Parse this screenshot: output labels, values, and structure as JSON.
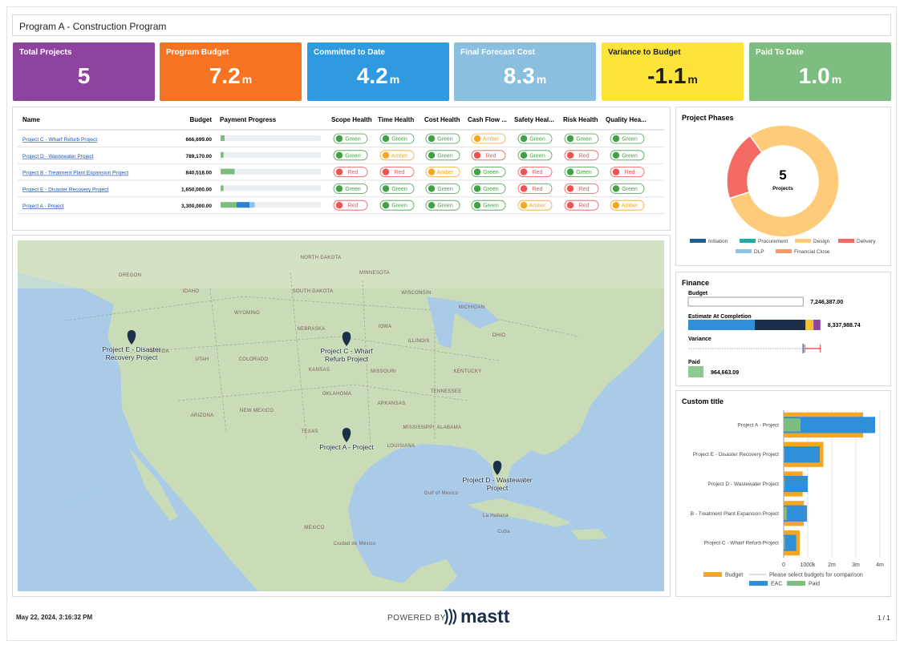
{
  "header": {
    "title": "Program A - Construction Program"
  },
  "kpis": [
    {
      "label": "Total Projects",
      "value": "5",
      "color": "#8e449e"
    },
    {
      "label": "Program Budget",
      "value": "7.2",
      "unit": "m",
      "color": "#f57423"
    },
    {
      "label": "Committed to Date",
      "value": "4.2",
      "unit": "m",
      "color": "#2f9ae0"
    },
    {
      "label": "Final Forecast Cost",
      "value": "8.3",
      "unit": "m",
      "color": "#8bbfe0"
    },
    {
      "label": "Variance to Budget",
      "value": "-1.1",
      "unit": "m",
      "color": "#fde43a",
      "text_color": "#1e1e1e"
    },
    {
      "label": "Paid To Date",
      "value": "1.0",
      "unit": "m",
      "color": "#7dbd7f"
    }
  ],
  "table": {
    "columns": [
      "Name",
      "Budget",
      "Payment Progress",
      "Scope Health",
      "Time Health",
      "Cost Health",
      "Cash Flow ...",
      "Safety Heal...",
      "Risk Health",
      "Quality Hea..."
    ],
    "progress_colors": [
      "#7dbd7f",
      "#2f7fcf",
      "#8fc4ea"
    ],
    "status_colors": {
      "Green": "#43a047",
      "Amber": "#f5a623",
      "Red": "#ef5350"
    },
    "rows": [
      {
        "name": "Project C - Wharf Refurb Project",
        "budget": "666,699.00",
        "progress": [
          4
        ],
        "health": [
          "Green",
          "Green",
          "Green",
          "Amber",
          "Green",
          "Green",
          "Green"
        ]
      },
      {
        "name": "Project D - Wastewater Project",
        "budget": "789,170.00",
        "progress": [
          3
        ],
        "health": [
          "Green",
          "Amber",
          "Green",
          "Red",
          "Green",
          "Red",
          "Green"
        ]
      },
      {
        "name": "Project B - Treatment Plant Expansion Project",
        "budget": "840,518.00",
        "progress": [
          14
        ],
        "health": [
          "Red",
          "Red",
          "Amber",
          "Green",
          "Red",
          "Green",
          "Red"
        ]
      },
      {
        "name": "Project E - Disaster Recovery Project",
        "budget": "1,650,000.00",
        "progress": [
          3
        ],
        "health": [
          "Green",
          "Green",
          "Green",
          "Green",
          "Red",
          "Red",
          "Green"
        ]
      },
      {
        "name": "Project A - Project",
        "budget": "3,300,000.00",
        "progress": [
          16,
          13,
          5
        ],
        "health": [
          "Red",
          "Green",
          "Green",
          "Green",
          "Amber",
          "Red",
          "Amber"
        ]
      }
    ]
  },
  "map": {
    "places": [
      "NORTH DAKOTA",
      "SOUTH DAKOTA",
      "MINNESOTA",
      "WISCONSIN",
      "MICHIGAN",
      "IOWA",
      "NEBRASKA",
      "ILLINOIS",
      "KANSAS",
      "MISSOURI",
      "OKLAHOMA",
      "ARKANSAS",
      "TENNESSEE",
      "KENTUCKY",
      "OHIO",
      "TEXAS",
      "NEW MEXICO",
      "COLORADO",
      "UTAH",
      "NEVADA",
      "WYOMING",
      "IDAHO",
      "OREGON",
      "ARIZONA",
      "MISSISSIPPI",
      "ALABAMA",
      "LOUISIANA",
      "MEXICO",
      "Gulf of Mexico",
      "La Habana",
      "Cuba",
      "Ciudad de México"
    ],
    "pins": [
      "Project E - Disaster Recovery Project",
      "Project C - Wharf Refurb Project",
      "Project A - Project",
      "Project D - Wastewater Project"
    ]
  },
  "phases": {
    "type": "pie",
    "title": "Project Phases",
    "center_value": "5",
    "center_label": "Projects",
    "categories": [
      "Initiation",
      "Procurement",
      "Design",
      "Delivery",
      "DLP",
      "Financial Close"
    ],
    "values": [
      0,
      0,
      4,
      1,
      0,
      0
    ],
    "colors": [
      "#1f5f8b",
      "#26a6a6",
      "#fdcb7a",
      "#f36b63",
      "#8fc3e6",
      "#f99a6b"
    ]
  },
  "finance": {
    "title": "Finance",
    "xlim": [
      0,
      8500000
    ],
    "budget": {
      "label": "Budget",
      "value": 7246387,
      "value_label": "7,246,387.00"
    },
    "eac": {
      "label": "Estimate At Completion",
      "values": [
        4200000,
        3200000,
        500000,
        437988.74
      ],
      "colors": [
        "#2f8fd8",
        "#1c2f4a",
        "#f5c12e",
        "#8e449e"
      ],
      "total": 8337988.74,
      "value_label": "8,337,988.74"
    },
    "variance": {
      "label": "Variance",
      "value": -1091601.74
    },
    "paid": {
      "label": "Paid",
      "value": 964663.09,
      "value_label": "964,663.09",
      "color": "#8fc98f"
    }
  },
  "chart_data": {
    "type": "bar",
    "orientation": "horizontal",
    "title": "Custom title",
    "categories": [
      "Project A - Project",
      "Project E - Disaster Recovery Project",
      "Project D - Wastewater Project",
      "B - Treatment Plant Expansion Project",
      "Project C - Wharf Refurb Project"
    ],
    "series": [
      {
        "name": "Budget",
        "color": "#f5a623",
        "values": [
          3300000,
          1650000,
          789170,
          840518,
          666699
        ]
      },
      {
        "name": "EAC",
        "color": "#2f8fd8",
        "values": [
          3800000,
          1500000,
          1000000,
          970000,
          520000
        ]
      },
      {
        "name": "Paid",
        "color": "#7dbd7f",
        "values": [
          700000,
          30000,
          40000,
          130000,
          50000
        ]
      }
    ],
    "legend_note": "Please select budgets for comparison",
    "xlim": [
      0,
      4000000
    ],
    "xticks": [
      0,
      {
        "value": 1000000,
        "label": "1000k"
      },
      {
        "value": 2000000,
        "label": "2m"
      },
      {
        "value": 3000000,
        "label": "3m"
      },
      {
        "value": 4000000,
        "label": "4m"
      }
    ],
    "grid": true
  },
  "footer": {
    "timestamp": "May 22, 2024, 3:16:32 PM",
    "powered_by": "POWERED BY",
    "brand": "mastt",
    "page": "1 / 1"
  }
}
